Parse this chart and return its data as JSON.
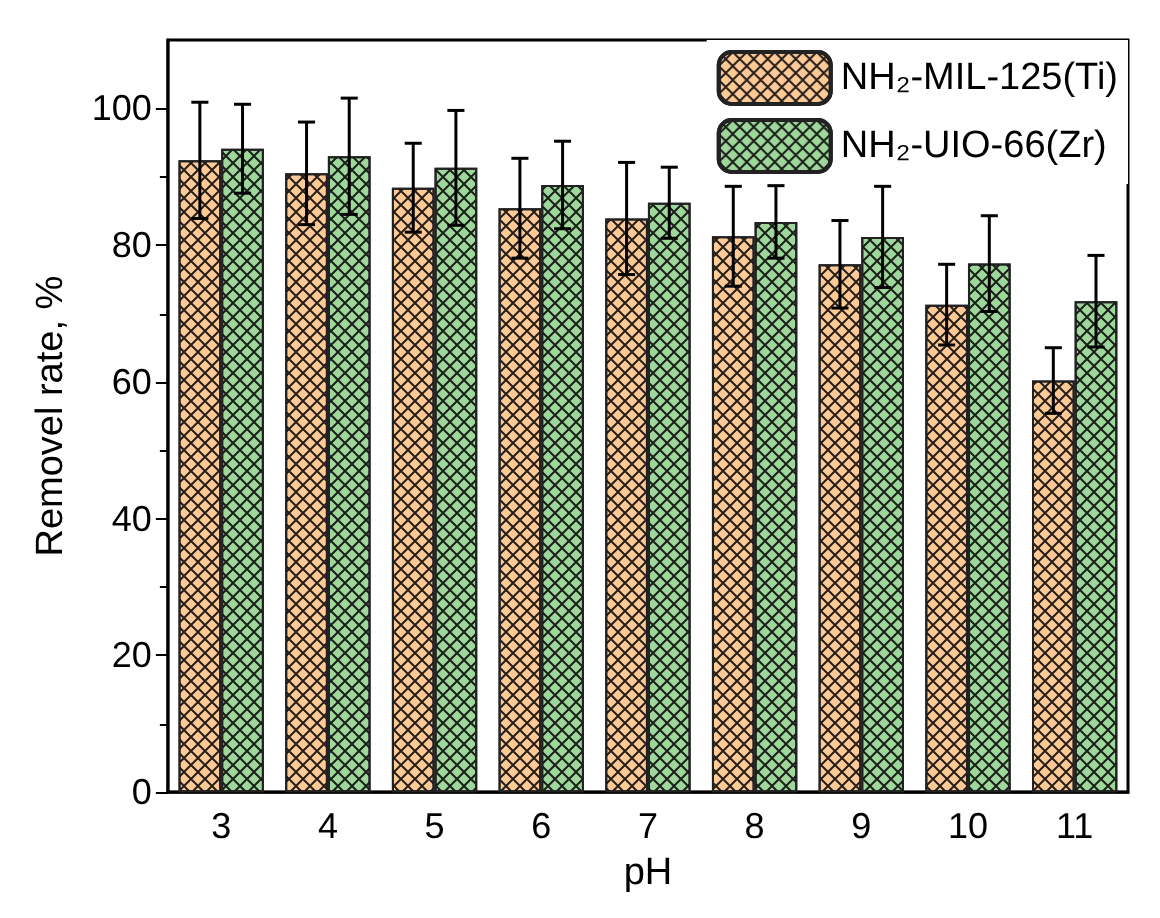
{
  "chart_data": {
    "type": "bar",
    "xlabel": "pH",
    "ylabel": "Removel rate, %",
    "categories": [
      "3",
      "4",
      "5",
      "6",
      "7",
      "8",
      "9",
      "10",
      "11"
    ],
    "series": [
      {
        "name": "NH₂-MIL-125(Ti)",
        "color": "#fdc997",
        "values": [
          92.4,
          90.5,
          88.4,
          85.4,
          83.9,
          81.3,
          77.2,
          71.3,
          60.2
        ],
        "errors": [
          8.5,
          7.5,
          6.5,
          7.3,
          8.2,
          7.3,
          6.4,
          5.9,
          4.8
        ]
      },
      {
        "name": "NH₂-UIO-66(Zr)",
        "color": "#9ed69b",
        "values": [
          94.1,
          93,
          91.3,
          88.8,
          86.2,
          83.4,
          81.2,
          77.3,
          71.8
        ],
        "errors": [
          6.5,
          8.5,
          8.4,
          6.4,
          5.2,
          5.3,
          7.4,
          7,
          6.7
        ]
      }
    ],
    "ylim": [
      0,
      110
    ],
    "yticks": [
      0,
      20,
      40,
      60,
      80,
      100
    ],
    "grid": false,
    "legend": "top right"
  }
}
